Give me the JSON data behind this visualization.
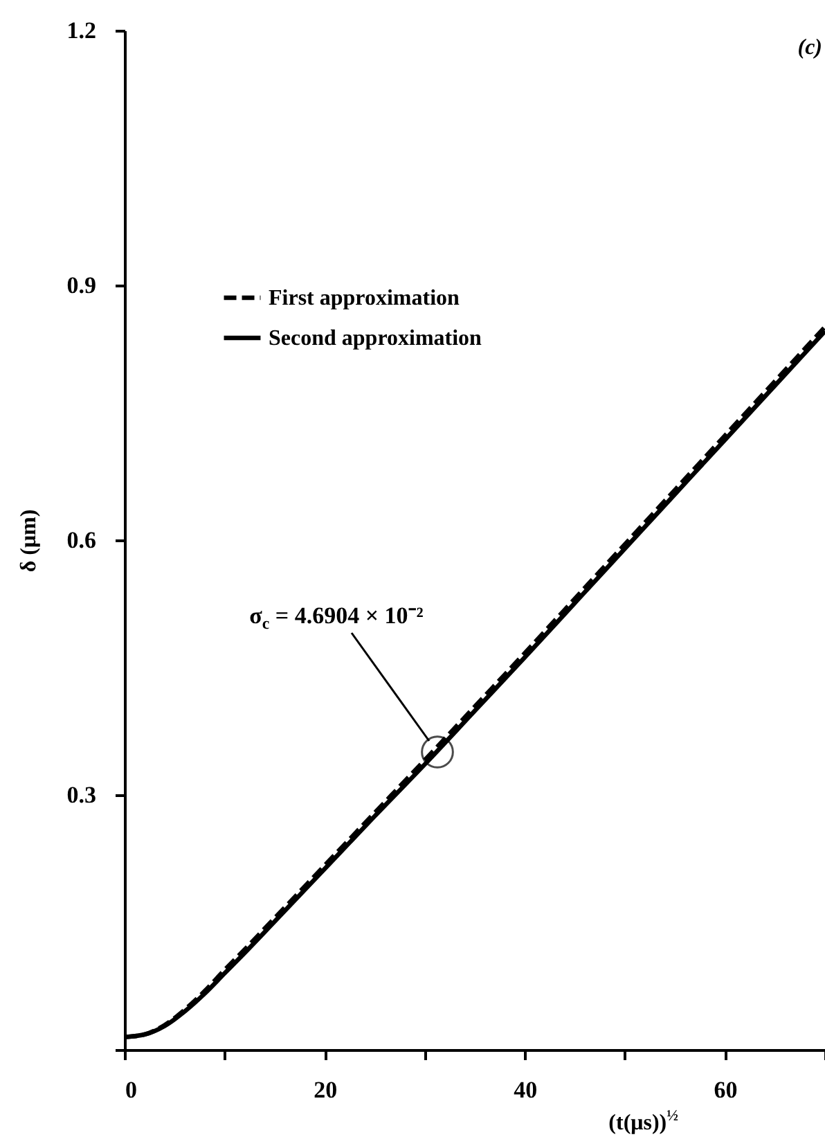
{
  "chart_data": {
    "type": "line",
    "xlabel": "(t(μs))$^{½}$",
    "ylabel": "δ (μm)",
    "x": [
      0,
      2,
      4,
      6,
      8,
      10,
      12,
      15,
      20,
      25,
      30,
      35,
      40,
      45,
      50,
      55,
      60,
      65,
      70
    ],
    "series": [
      {
        "name": "First approximation",
        "color": "#000000",
        "line_style": "dashed",
        "values": [
          0.015,
          0.018,
          0.029,
          0.047,
          0.069,
          0.094,
          0.118,
          0.155,
          0.217,
          0.279,
          0.341,
          0.404,
          0.467,
          0.531,
          0.595,
          0.659,
          0.723,
          0.787,
          0.851
        ]
      },
      {
        "name": "Second approximation",
        "color": "#000000",
        "line_style": "solid",
        "values": [
          0.015,
          0.018,
          0.028,
          0.045,
          0.066,
          0.09,
          0.114,
          0.151,
          0.213,
          0.275,
          0.336,
          0.399,
          0.462,
          0.526,
          0.59,
          0.654,
          0.718,
          0.782,
          0.846
        ]
      }
    ],
    "xlim": [
      0,
      70
    ],
    "ylim": [
      0,
      1.2
    ],
    "xticks": [
      0,
      {
        "value": 10,
        "label": null
      },
      20,
      {
        "value": 30,
        "label": null
      },
      40,
      {
        "value": 50,
        "label": null
      },
      60,
      {
        "value": 70,
        "label": null
      }
    ],
    "yticks": [
      {
        "value": 0,
        "label": null
      },
      0.3,
      0.6,
      0.9,
      1.2
    ],
    "grid": false,
    "legend": "top left",
    "annotations": [
      "σ$_{c}$ = 4.6904 × 10⁻²",
      "(c)"
    ]
  }
}
